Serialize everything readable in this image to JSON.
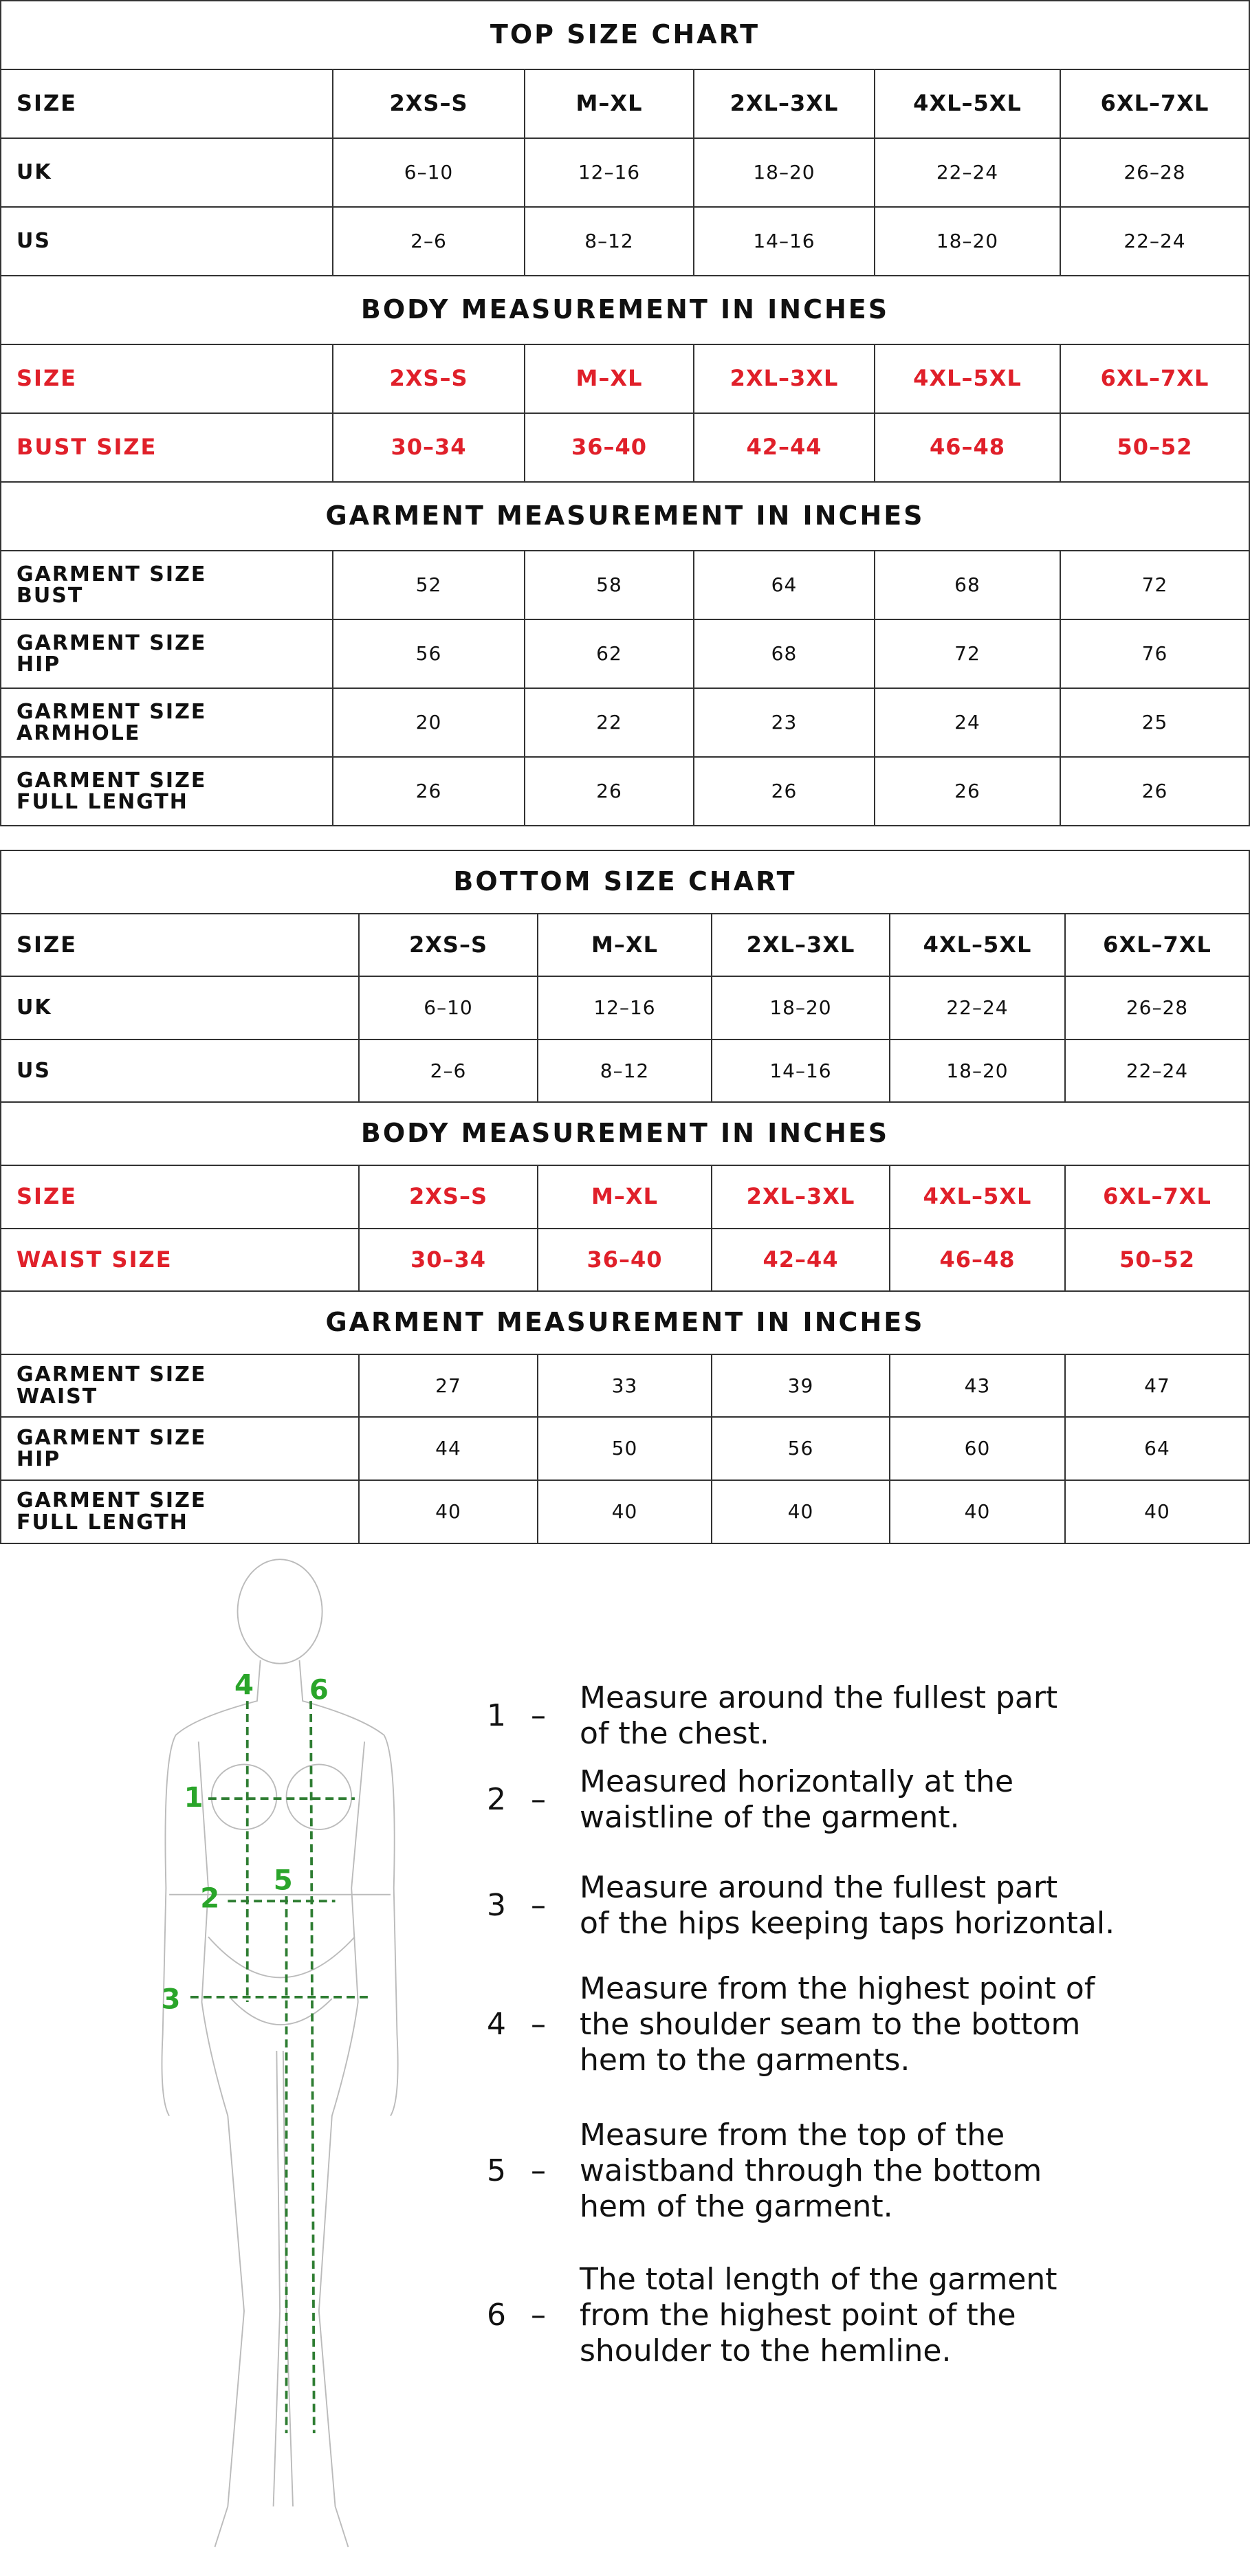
{
  "top_chart": {
    "title": "TOP SIZE CHART",
    "header": [
      "SIZE",
      "2XS–S",
      "M–XL",
      "2XL–3XL",
      "4XL–5XL",
      "6XL–7XL"
    ],
    "rows": [
      [
        "UK",
        "6–10",
        "12–16",
        "18–20",
        "22–24",
        "26–28"
      ],
      [
        "US",
        "2–6",
        "8–12",
        "14–16",
        "18–20",
        "22–24"
      ]
    ],
    "body_title": "BODY MEASUREMENT IN INCHES",
    "body_rows": [
      [
        "SIZE",
        "2XS–S",
        "M–XL",
        "2XL–3XL",
        "4XL–5XL",
        "6XL–7XL"
      ],
      [
        "BUST SIZE",
        "30–34",
        "36–40",
        "42–44",
        "46–48",
        "50–52"
      ]
    ],
    "garment_title": "GARMENT MEASUREMENT IN INCHES",
    "garment_rows": [
      [
        "GARMENT SIZE\nBUST",
        "52",
        "58",
        "64",
        "68",
        "72"
      ],
      [
        "GARMENT SIZE\nHIP",
        "56",
        "62",
        "68",
        "72",
        "76"
      ],
      [
        "GARMENT SIZE\nARMHOLE",
        "20",
        "22",
        "23",
        "24",
        "25"
      ],
      [
        "GARMENT SIZE\nFULL LENGTH",
        "26",
        "26",
        "26",
        "26",
        "26"
      ]
    ]
  },
  "bottom_chart": {
    "title": "BOTTOM SIZE CHART",
    "header": [
      "SIZE",
      "2XS–S",
      "M–XL",
      "2XL–3XL",
      "4XL–5XL",
      "6XL–7XL"
    ],
    "rows": [
      [
        "UK",
        "6–10",
        "12–16",
        "18–20",
        "22–24",
        "26–28"
      ],
      [
        "US",
        "2–6",
        "8–12",
        "14–16",
        "18–20",
        "22–24"
      ]
    ],
    "body_title": "BODY MEASUREMENT IN INCHES",
    "body_rows": [
      [
        "SIZE",
        "2XS–S",
        "M–XL",
        "2XL–3XL",
        "4XL–5XL",
        "6XL–7XL"
      ],
      [
        "WAIST SIZE",
        "30–34",
        "36–40",
        "42–44",
        "46–48",
        "50–52"
      ]
    ],
    "garment_title": "GARMENT MEASUREMENT IN INCHES",
    "garment_rows": [
      [
        "GARMENT SIZE\nWAIST",
        "27",
        "33",
        "39",
        "43",
        "47"
      ],
      [
        "GARMENT SIZE\nHIP",
        "44",
        "50",
        "56",
        "60",
        "64"
      ],
      [
        "GARMENT SIZE\nFULL LENGTH",
        "40",
        "40",
        "40",
        "40",
        "40"
      ]
    ]
  },
  "figure_labels": [
    "1",
    "2",
    "3",
    "4",
    "5",
    "6"
  ],
  "separator": "–",
  "instructions": [
    {
      "number": "1",
      "text": "Measure around the fullest part\nof the chest."
    },
    {
      "number": "2",
      "text": "Measured horizontally at the\nwaistline of the garment."
    },
    {
      "number": "3",
      "text": "Measure around the fullest part\nof the hips keeping taps horizontal."
    },
    {
      "number": "4",
      "text": "Measure from the highest point of\nthe shoulder seam to the bottom\nhem to the garments."
    },
    {
      "number": "5",
      "text": "Measure from the top of the\nwaistband through the bottom\nhem of the garment."
    },
    {
      "number": "6",
      "text": "The total length of the garment\nfrom the highest point of the\nshoulder to the hemline."
    }
  ]
}
